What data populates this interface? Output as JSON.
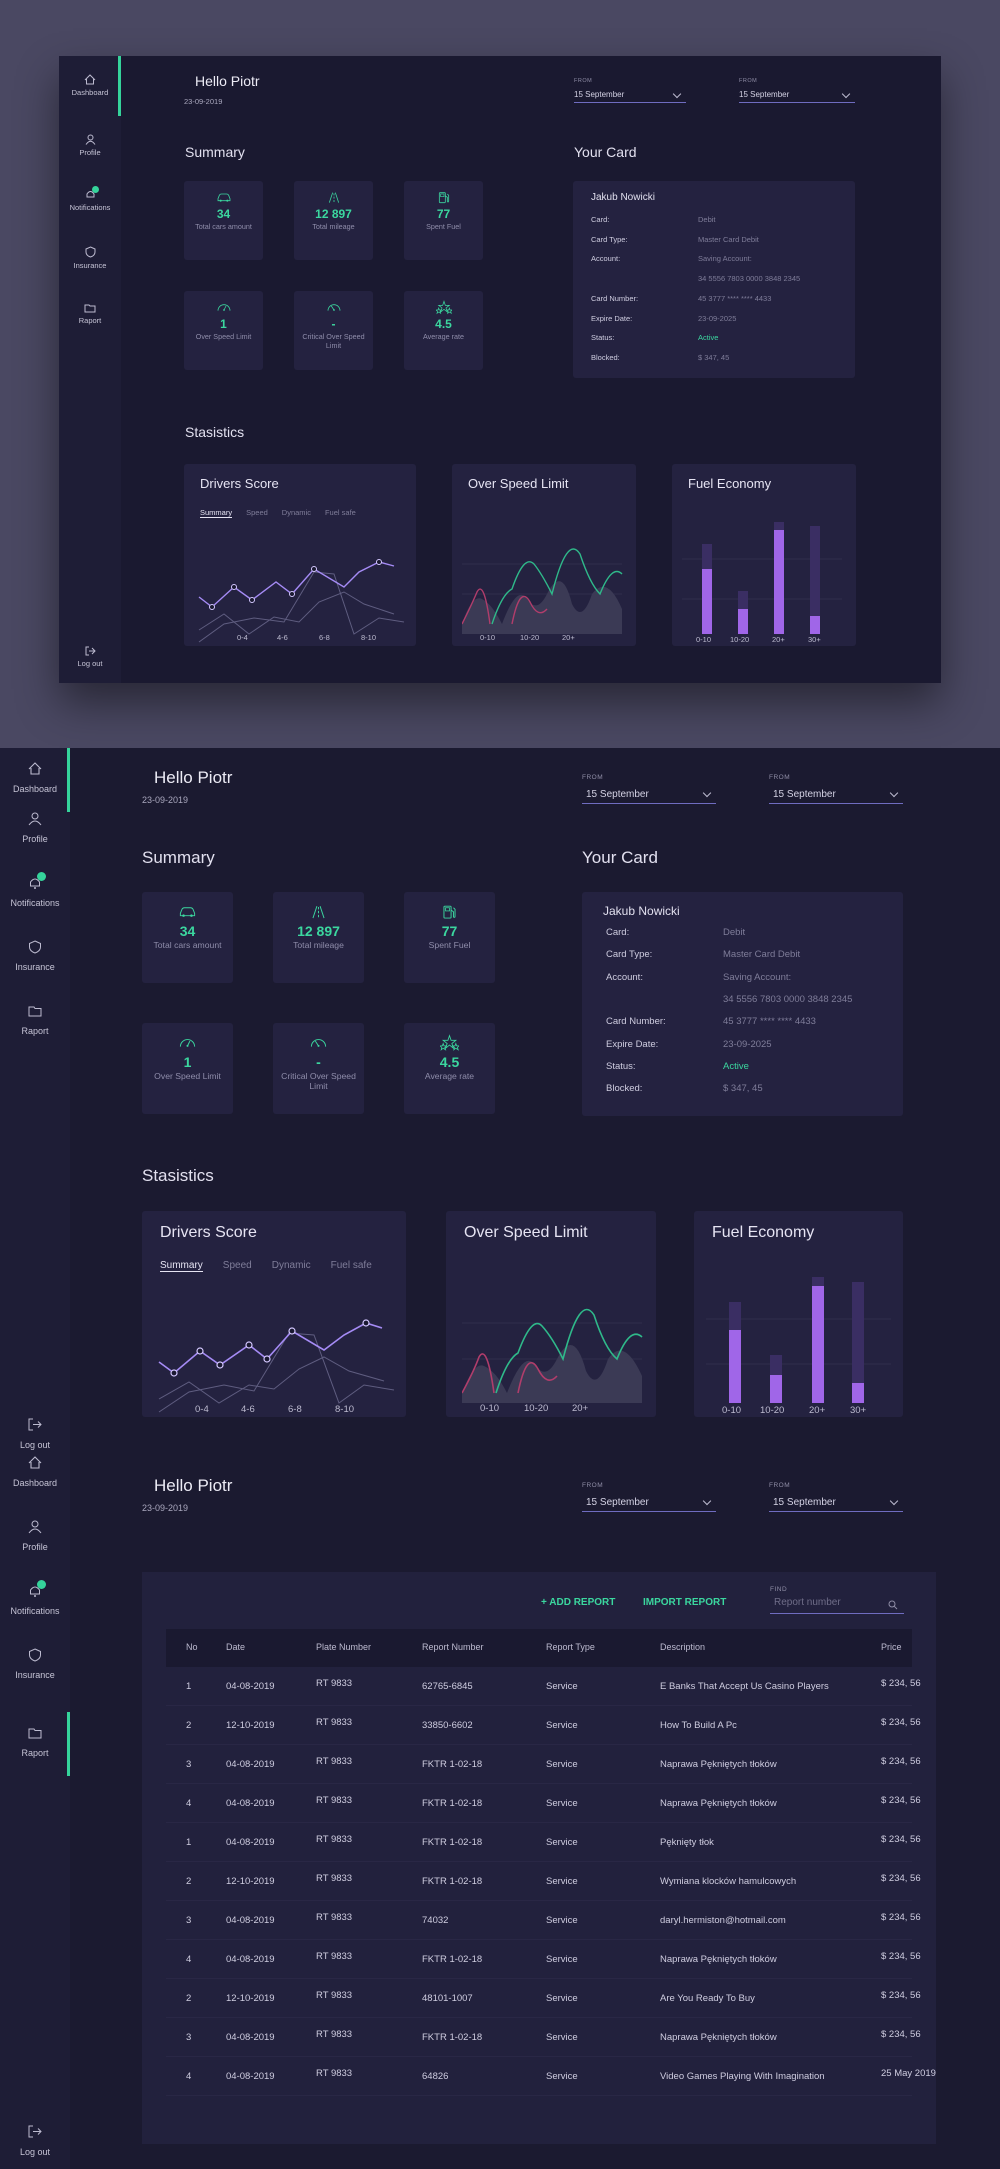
{
  "nav": {
    "dashboard": "Dashboard",
    "profile": "Profile",
    "notifications": "Notifications",
    "insurance": "Insurance",
    "raport": "Raport",
    "logout": "Log out"
  },
  "header": {
    "greeting": "Hello Piotr",
    "date": "23-09-2019",
    "from_label": "FROM",
    "from1": "15 September",
    "from2": "15 September"
  },
  "summary": {
    "title": "Summary",
    "tiles": [
      {
        "icon": "car-icon",
        "value": "34",
        "caption": "Total cars amount"
      },
      {
        "icon": "road-icon",
        "value": "12 897",
        "caption": "Total mileage"
      },
      {
        "icon": "fuel-pump-icon",
        "value": "77",
        "caption": "Spent Fuel"
      },
      {
        "icon": "speedometer-icon",
        "value": "1",
        "caption": "Over Speed Limit"
      },
      {
        "icon": "speedometer-critical-icon",
        "value": "-",
        "caption": "Critical Over Speed Limit"
      },
      {
        "icon": "stars-icon",
        "value": "4.5",
        "caption": "Average rate"
      }
    ]
  },
  "card": {
    "title": "Your Card",
    "holder": "Jakub Nowicki",
    "rows": [
      {
        "k": "Card:",
        "v": "Debit"
      },
      {
        "k": "Card Type:",
        "v": "Master Card Debit"
      },
      {
        "k": "Account:",
        "v": "Saving Account:"
      },
      {
        "k": "",
        "v": "34 5556 7803 0000 3848 2345"
      },
      {
        "k": "Card Number:",
        "v": "45 3777 **** **** 4433"
      },
      {
        "k": "Expire Date:",
        "v": "23-09-2025"
      },
      {
        "k": "Status:",
        "v": "Active"
      },
      {
        "k": "Blocked:",
        "v": "$ 347, 45"
      }
    ]
  },
  "stats": {
    "title": "Stasistics",
    "drivers": {
      "title": "Drivers Score",
      "tabs": [
        "Summary",
        "Speed",
        "Dynamic",
        "Fuel safe"
      ],
      "x": [
        "0-4",
        "4-6",
        "6-8",
        "8-10"
      ]
    },
    "overspeed": {
      "title": "Over Speed Limit",
      "x": [
        "0-10",
        "10-20",
        "20+"
      ]
    },
    "fuel": {
      "title": "Fuel Economy",
      "x": [
        "0-10",
        "10-20",
        "20+",
        "30+"
      ]
    }
  },
  "report": {
    "add": "+ ADD REPORT",
    "import": "IMPORT  REPORT",
    "find_label": "FIND",
    "search_placeholder": "Report number",
    "columns": [
      "No",
      "Date",
      "Plate Number",
      "Report Number",
      "Report Type",
      "Description",
      "Price"
    ],
    "rows": [
      [
        "1",
        "04-08-2019",
        "RT 9833",
        "62765-6845",
        "Service",
        "E Banks That Accept Us Casino Players",
        "$ 234, 56"
      ],
      [
        "2",
        "12-10-2019",
        "RT 9833",
        "33850-6602",
        "Service",
        "How To Build A Pc",
        "$ 234, 56"
      ],
      [
        "3",
        "04-08-2019",
        "RT 9833",
        "FKTR 1-02-18",
        "Service",
        "Naprawa Pękniętych tłoków",
        "$ 234, 56"
      ],
      [
        "4",
        "04-08-2019",
        "RT 9833",
        "FKTR 1-02-18",
        "Service",
        "Naprawa Pękniętych tłoków",
        "$ 234, 56"
      ],
      [
        "1",
        "04-08-2019",
        "RT 9833",
        "FKTR 1-02-18",
        "Service",
        "Pęknięty tłok",
        "$ 234, 56"
      ],
      [
        "2",
        "12-10-2019",
        "RT 9833",
        "FKTR 1-02-18",
        "Service",
        " Wymiana klocków hamulcowych",
        "$ 234, 56"
      ],
      [
        "3",
        "04-08-2019",
        "RT 9833",
        "74032",
        "Service",
        "daryl.hermiston@hotmail.com",
        "$ 234, 56"
      ],
      [
        "4",
        "04-08-2019",
        "RT 9833",
        "FKTR 1-02-18",
        "Service",
        "Naprawa Pękniętych tłoków",
        "$ 234, 56"
      ],
      [
        "2",
        "12-10-2019",
        "RT 9833",
        "48101-1007",
        "Service",
        "Are You Ready To Buy",
        "$ 234, 56"
      ],
      [
        "3",
        "04-08-2019",
        "RT 9833",
        "FKTR 1-02-18",
        "Service",
        "Naprawa Pękniętych tłoków",
        "$ 234, 56"
      ],
      [
        "4",
        "04-08-2019",
        "RT 9833",
        "64826",
        "Service",
        "Video Games Playing With Imagination",
        "25 May 2019"
      ]
    ]
  },
  "colors": {
    "accent": "#35d39b",
    "purple": "#a77cf5",
    "bg": "#1b1a30",
    "panel": "#242240"
  }
}
